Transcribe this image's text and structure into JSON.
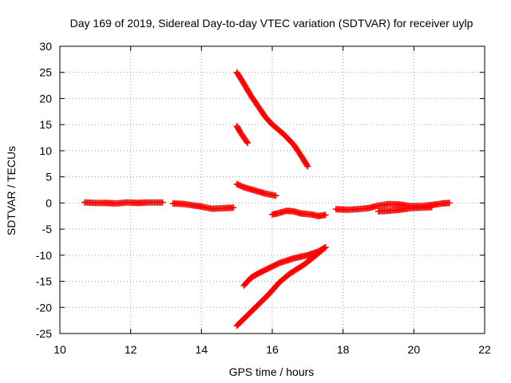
{
  "chart_data": {
    "type": "scatter",
    "title": "Day 169 of 2019, Sidereal Day-to-day VTEC variation (SDTVAR) for receiver uylp",
    "xlabel": "GPS time / hours",
    "ylabel": "SDTVAR / TECUs",
    "xlim": [
      10,
      22
    ],
    "ylim": [
      -25,
      30
    ],
    "x_ticks": [
      10,
      12,
      14,
      16,
      18,
      20,
      22
    ],
    "y_ticks": [
      -25,
      -20,
      -15,
      -10,
      -5,
      0,
      5,
      10,
      15,
      20,
      25,
      30
    ],
    "grid": true,
    "marker": "plus",
    "color": "#ff0000",
    "segments": [
      {
        "points": [
          [
            10.7,
            0.1
          ],
          [
            11.0,
            0.0
          ],
          [
            11.3,
            0.0
          ],
          [
            11.6,
            -0.1
          ],
          [
            11.9,
            0.1
          ],
          [
            12.2,
            0.0
          ],
          [
            12.5,
            0.1
          ],
          [
            12.9,
            0.1
          ]
        ]
      },
      {
        "points": [
          [
            13.2,
            -0.1
          ],
          [
            13.5,
            -0.2
          ],
          [
            13.8,
            -0.5
          ],
          [
            14.0,
            -0.7
          ],
          [
            14.3,
            -1.1
          ],
          [
            14.6,
            -1.0
          ],
          [
            14.9,
            -0.9
          ]
        ]
      },
      {
        "points": [
          [
            15.0,
            25.0
          ],
          [
            15.2,
            22.8
          ],
          [
            15.4,
            20.5
          ],
          [
            15.6,
            18.5
          ],
          [
            15.8,
            16.5
          ],
          [
            16.0,
            15.0
          ],
          [
            16.3,
            13.3
          ],
          [
            16.6,
            11.2
          ],
          [
            16.8,
            9.2
          ],
          [
            17.0,
            7.0
          ]
        ]
      },
      {
        "points": [
          [
            15.0,
            14.7
          ],
          [
            15.1,
            13.5
          ],
          [
            15.2,
            12.5
          ],
          [
            15.3,
            11.5
          ]
        ]
      },
      {
        "points": [
          [
            15.0,
            3.6
          ],
          [
            15.2,
            3.0
          ],
          [
            15.4,
            2.6
          ],
          [
            15.6,
            2.2
          ],
          [
            15.8,
            1.8
          ],
          [
            16.1,
            1.4
          ]
        ]
      },
      {
        "points": [
          [
            16.0,
            -2.2
          ],
          [
            16.2,
            -1.9
          ],
          [
            16.4,
            -1.5
          ],
          [
            16.6,
            -1.6
          ],
          [
            16.8,
            -2.0
          ],
          [
            17.1,
            -2.2
          ],
          [
            17.3,
            -2.5
          ],
          [
            17.5,
            -2.3
          ]
        ]
      },
      {
        "points": [
          [
            17.8,
            -1.2
          ],
          [
            18.1,
            -1.3
          ],
          [
            18.4,
            -1.2
          ],
          [
            18.7,
            -1.0
          ],
          [
            19.0,
            -0.5
          ],
          [
            19.3,
            -0.2
          ],
          [
            19.6,
            -0.3
          ],
          [
            19.9,
            -0.6
          ],
          [
            20.2,
            -0.6
          ],
          [
            20.5,
            -0.4
          ],
          [
            20.8,
            -0.1
          ],
          [
            21.0,
            0.0
          ]
        ]
      },
      {
        "points": [
          [
            19.0,
            -1.6
          ],
          [
            19.3,
            -1.5
          ],
          [
            19.6,
            -1.3
          ],
          [
            19.9,
            -1.0
          ],
          [
            20.2,
            -0.9
          ],
          [
            20.5,
            -0.8
          ]
        ]
      },
      {
        "points": [
          [
            15.2,
            -15.8
          ],
          [
            15.4,
            -14.3
          ],
          [
            15.6,
            -13.5
          ],
          [
            15.9,
            -12.5
          ],
          [
            16.2,
            -11.5
          ],
          [
            16.6,
            -10.6
          ],
          [
            17.0,
            -10.0
          ],
          [
            17.3,
            -9.3
          ],
          [
            17.5,
            -8.5
          ]
        ]
      },
      {
        "points": [
          [
            15.0,
            -23.5
          ],
          [
            15.3,
            -21.5
          ],
          [
            15.6,
            -19.5
          ],
          [
            15.9,
            -17.5
          ],
          [
            16.2,
            -15.2
          ],
          [
            16.5,
            -13.5
          ],
          [
            16.9,
            -11.8
          ],
          [
            17.2,
            -10.2
          ],
          [
            17.5,
            -8.5
          ]
        ]
      }
    ]
  }
}
